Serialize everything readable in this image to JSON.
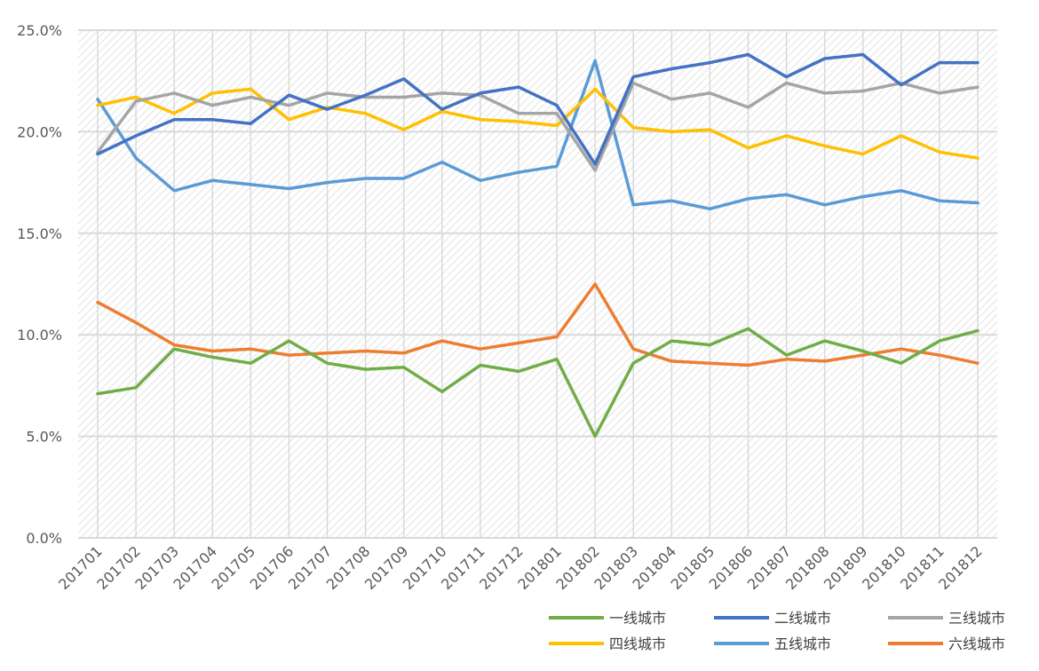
{
  "chart_data": {
    "type": "line",
    "title": "",
    "xlabel": "",
    "ylabel": "",
    "ylim": [
      0,
      25
    ],
    "y_tick_format": "percent_1dp",
    "y_ticks": [
      "0.0%",
      "5.0%",
      "10.0%",
      "15.0%",
      "20.0%",
      "25.0%"
    ],
    "grid": true,
    "legend_position": "bottom-right",
    "categories": [
      "201701",
      "201702",
      "201703",
      "201704",
      "201705",
      "201706",
      "201707",
      "201708",
      "201709",
      "201710",
      "201711",
      "201712",
      "201801",
      "201802",
      "201803",
      "201804",
      "201805",
      "201806",
      "201807",
      "201808",
      "201809",
      "201810",
      "201811",
      "201812"
    ],
    "series": [
      {
        "name": "一线城市",
        "color": "#70AD47",
        "values": [
          7.1,
          7.4,
          9.3,
          8.9,
          8.6,
          9.7,
          8.6,
          8.3,
          8.4,
          7.2,
          8.5,
          8.2,
          8.8,
          5.0,
          8.6,
          9.7,
          9.5,
          10.3,
          9.0,
          9.7,
          9.2,
          8.6,
          9.7,
          10.2
        ]
      },
      {
        "name": "二线城市",
        "color": "#4472C4",
        "values": [
          18.9,
          19.8,
          20.6,
          20.6,
          20.4,
          21.8,
          21.1,
          21.8,
          22.6,
          21.1,
          21.9,
          22.2,
          21.3,
          18.4,
          22.7,
          23.1,
          23.4,
          23.8,
          22.7,
          23.6,
          23.8,
          22.3,
          23.4,
          23.4
        ]
      },
      {
        "name": "三线城市",
        "color": "#A5A5A5",
        "values": [
          19.0,
          21.5,
          21.9,
          21.3,
          21.7,
          21.3,
          21.9,
          21.7,
          21.7,
          21.9,
          21.8,
          20.9,
          20.9,
          18.1,
          22.4,
          21.6,
          21.9,
          21.2,
          22.4,
          21.9,
          22.0,
          22.4,
          21.9,
          22.2
        ]
      },
      {
        "name": "四线城市",
        "color": "#FFC000",
        "values": [
          21.3,
          21.7,
          20.9,
          21.9,
          22.1,
          20.6,
          21.2,
          20.9,
          20.1,
          21.0,
          20.6,
          20.5,
          20.3,
          22.1,
          20.2,
          20.0,
          20.1,
          19.2,
          19.8,
          19.3,
          18.9,
          19.8,
          19.0,
          18.7
        ]
      },
      {
        "name": "五线城市",
        "color": "#5B9BD5",
        "values": [
          21.6,
          18.7,
          17.1,
          17.6,
          17.4,
          17.2,
          17.5,
          17.7,
          17.7,
          18.5,
          17.6,
          18.0,
          18.3,
          23.5,
          16.4,
          16.6,
          16.2,
          16.7,
          16.9,
          16.4,
          16.8,
          17.1,
          16.6,
          16.5
        ]
      },
      {
        "name": "六线城市",
        "color": "#ED7D31",
        "values": [
          11.6,
          10.6,
          9.5,
          9.2,
          9.3,
          9.0,
          9.1,
          9.2,
          9.1,
          9.7,
          9.3,
          9.6,
          9.9,
          12.5,
          9.3,
          8.7,
          8.6,
          8.5,
          8.8,
          8.7,
          9.0,
          9.3,
          9.0,
          8.6
        ]
      }
    ]
  },
  "legend_order": [
    0,
    1,
    2,
    3,
    4,
    5
  ]
}
